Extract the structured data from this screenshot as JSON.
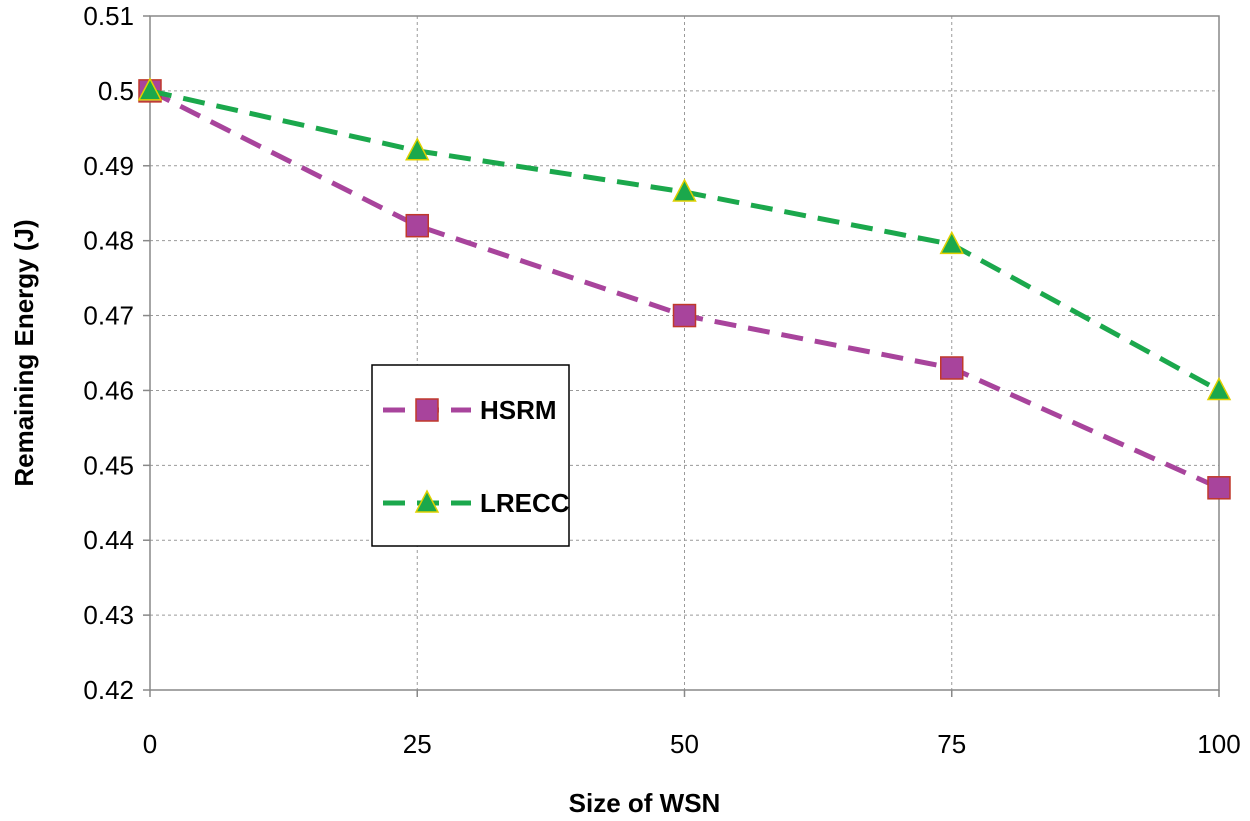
{
  "chart_data": {
    "type": "line",
    "title": "",
    "xlabel": "Size of WSN",
    "ylabel": "Remaining Energy (J)",
    "x": [
      0,
      25,
      50,
      75,
      100
    ],
    "x_tick_labels": [
      "0",
      "25",
      "50",
      "75",
      "100"
    ],
    "xlim": [
      0,
      100
    ],
    "ylim": [
      0.42,
      0.51
    ],
    "y_tick_labels": [
      "0.42",
      "0.43",
      "0.44",
      "0.45",
      "0.46",
      "0.47",
      "0.48",
      "0.49",
      "0.5",
      "0.51"
    ],
    "grid": true,
    "legend_position": "middle-left",
    "series": [
      {
        "name": "HSRM",
        "values": [
          0.5,
          0.482,
          0.47,
          0.463,
          0.447
        ],
        "color": "#A8449C",
        "marker": "square"
      },
      {
        "name": "LRECC",
        "values": [
          0.5,
          0.492,
          0.4865,
          0.4795,
          0.46
        ],
        "color": "#1BA84C",
        "marker": "triangle"
      }
    ]
  }
}
